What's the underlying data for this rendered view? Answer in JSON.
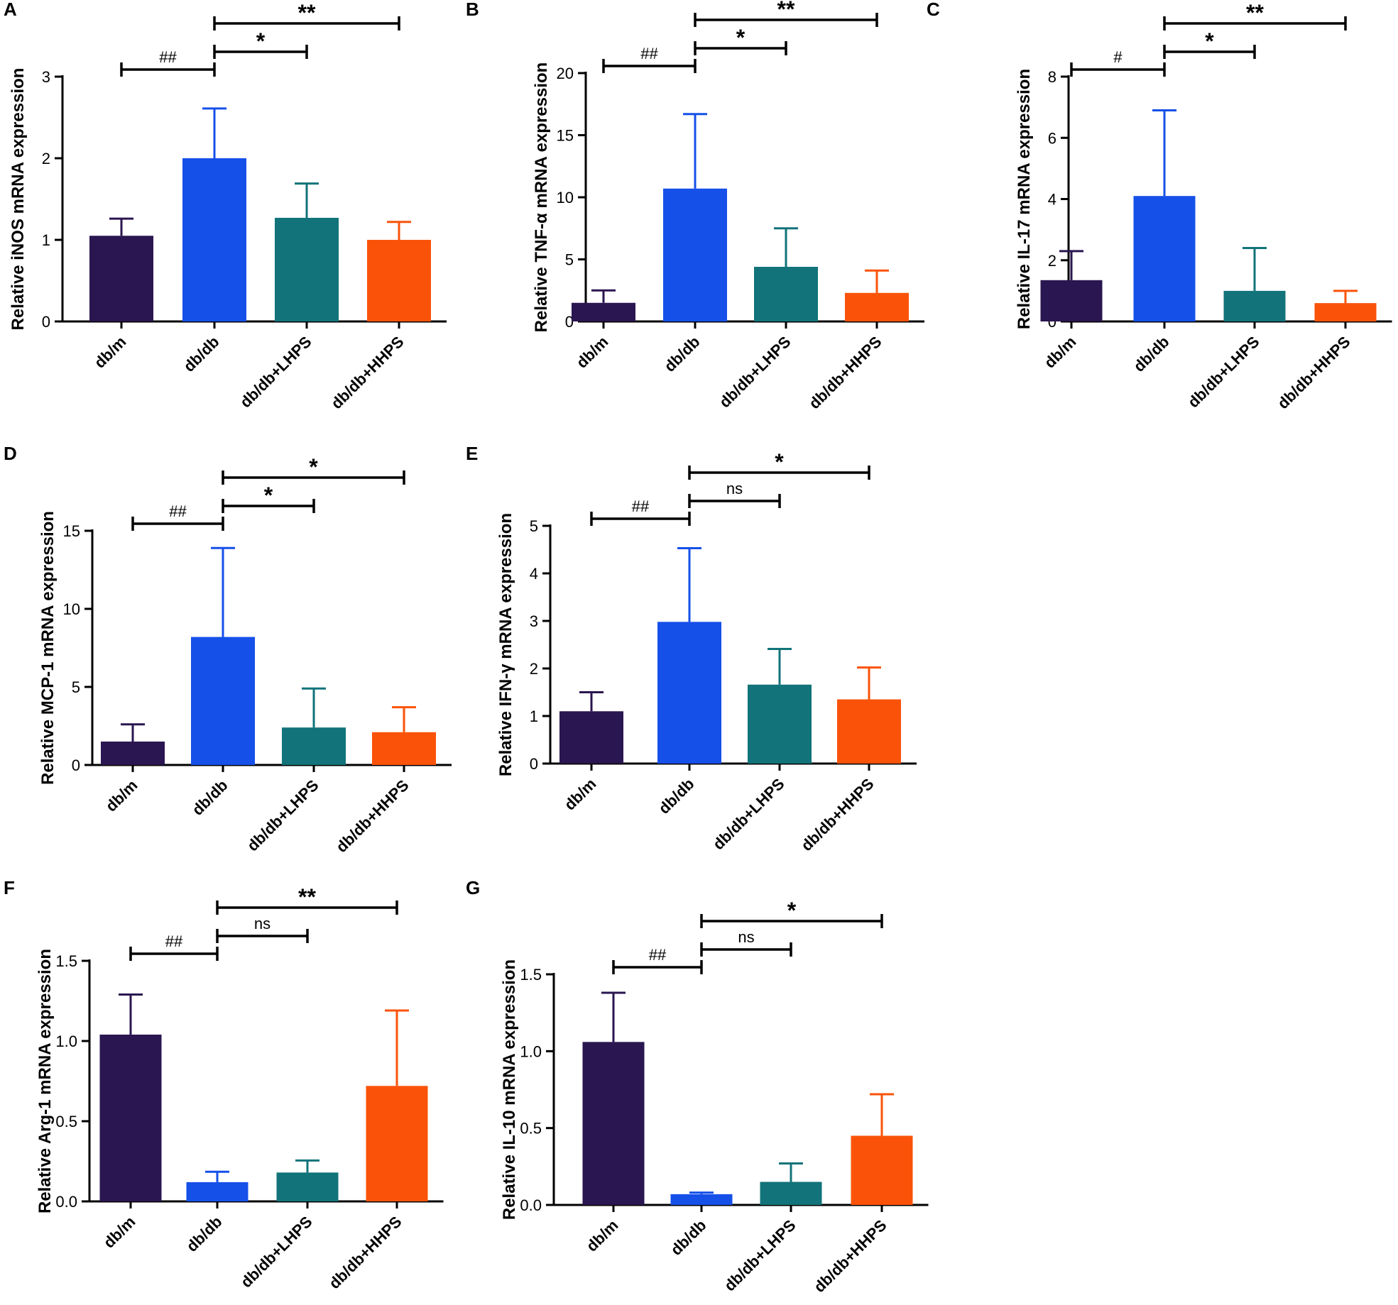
{
  "chart_data": [
    {
      "panel": "A",
      "type": "bar",
      "ylabel": "Relative iNOS mRNA expression",
      "categories": [
        "db/m",
        "db/db",
        "db/db+LHPS",
        "db/db+HHPS"
      ],
      "values": [
        1.05,
        2.0,
        1.27,
        1.0
      ],
      "errors": [
        0.21,
        0.61,
        0.42,
        0.22
      ],
      "colors": [
        "#2a1650",
        "#1550e8",
        "#12737a",
        "#fa5309"
      ],
      "ylim": [
        0,
        3
      ],
      "yticks": [
        "0",
        "1",
        "2",
        "3"
      ],
      "comparisons": [
        {
          "from": 0,
          "to": 1,
          "label": "##"
        },
        {
          "from": 1,
          "to": 2,
          "label": "*"
        },
        {
          "from": 1,
          "to": 3,
          "label": "**"
        }
      ]
    },
    {
      "panel": "B",
      "type": "bar",
      "ylabel": "Relative TNF-α mRNA expression",
      "categories": [
        "db/m",
        "db/db",
        "db/db+LHPS",
        "db/db+HHPS"
      ],
      "values": [
        1.5,
        10.7,
        4.4,
        2.3
      ],
      "errors": [
        1.0,
        6.0,
        3.1,
        1.8
      ],
      "colors": [
        "#2a1650",
        "#1550e8",
        "#12737a",
        "#fa5309"
      ],
      "ylim": [
        0,
        20
      ],
      "yticks": [
        "0",
        "5",
        "10",
        "15",
        "20"
      ],
      "comparisons": [
        {
          "from": 0,
          "to": 1,
          "label": "##"
        },
        {
          "from": 1,
          "to": 2,
          "label": "*"
        },
        {
          "from": 1,
          "to": 3,
          "label": "**"
        }
      ]
    },
    {
      "panel": "C",
      "type": "bar",
      "ylabel": "Relative IL-17 mRNA expression",
      "categories": [
        "db/m",
        "db/db",
        "db/db+LHPS",
        "db/db+HHPS"
      ],
      "values": [
        1.35,
        4.1,
        1.0,
        0.6
      ],
      "errors": [
        0.95,
        2.8,
        1.4,
        0.4
      ],
      "colors": [
        "#2a1650",
        "#1550e8",
        "#12737a",
        "#fa5309"
      ],
      "ylim": [
        0,
        8
      ],
      "yticks": [
        "0",
        "2",
        "4",
        "6",
        "8"
      ],
      "comparisons": [
        {
          "from": 0,
          "to": 1,
          "label": "#"
        },
        {
          "from": 1,
          "to": 2,
          "label": "*"
        },
        {
          "from": 1,
          "to": 3,
          "label": "**"
        }
      ]
    },
    {
      "panel": "D",
      "type": "bar",
      "ylabel": "Relative MCP-1 mRNA expression",
      "categories": [
        "db/m",
        "db/db",
        "db/db+LHPS",
        "db/db+HHPS"
      ],
      "values": [
        1.5,
        8.2,
        2.4,
        2.1
      ],
      "errors": [
        1.1,
        5.7,
        2.5,
        1.6
      ],
      "colors": [
        "#2a1650",
        "#1550e8",
        "#12737a",
        "#fa5309"
      ],
      "ylim": [
        0,
        15
      ],
      "yticks": [
        "0",
        "5",
        "10",
        "15"
      ],
      "comparisons": [
        {
          "from": 0,
          "to": 1,
          "label": "##"
        },
        {
          "from": 1,
          "to": 2,
          "label": "*"
        },
        {
          "from": 1,
          "to": 3,
          "label": "*"
        }
      ]
    },
    {
      "panel": "E",
      "type": "bar",
      "ylabel": "Relative IFN-γ mRNA expression",
      "categories": [
        "db/m",
        "db/db",
        "db/db+LHPS",
        "db/db+HHPS"
      ],
      "values": [
        1.1,
        2.98,
        1.66,
        1.35
      ],
      "errors": [
        0.4,
        1.55,
        0.75,
        0.67
      ],
      "colors": [
        "#2a1650",
        "#1550e8",
        "#12737a",
        "#fa5309"
      ],
      "ylim": [
        0,
        5
      ],
      "yticks": [
        "0",
        "1",
        "2",
        "3",
        "4",
        "5"
      ],
      "comparisons": [
        {
          "from": 0,
          "to": 1,
          "label": "##"
        },
        {
          "from": 1,
          "to": 2,
          "label": "ns"
        },
        {
          "from": 1,
          "to": 3,
          "label": "*"
        }
      ]
    },
    {
      "panel": "F",
      "type": "bar",
      "ylabel": "Relative Arg-1 mRNA expression",
      "categories": [
        "db/m",
        "db/db",
        "db/db+LHPS",
        "db/db+HHPS"
      ],
      "values": [
        1.04,
        0.12,
        0.18,
        0.72
      ],
      "errors": [
        0.25,
        0.065,
        0.075,
        0.47
      ],
      "colors": [
        "#2a1650",
        "#1550e8",
        "#12737a",
        "#fa5309"
      ],
      "ylim": [
        0,
        1.5
      ],
      "yticks": [
        "0.0",
        "0.5",
        "1.0",
        "1.5"
      ],
      "comparisons": [
        {
          "from": 0,
          "to": 1,
          "label": "##"
        },
        {
          "from": 1,
          "to": 2,
          "label": "ns"
        },
        {
          "from": 1,
          "to": 3,
          "label": "**"
        }
      ]
    },
    {
      "panel": "G",
      "type": "bar",
      "ylabel": "Relative IL-10 mRNA expression",
      "categories": [
        "db/m",
        "db/db",
        "db/db+LHPS",
        "db/db+HHPS"
      ],
      "values": [
        1.06,
        0.07,
        0.15,
        0.45
      ],
      "errors": [
        0.32,
        0.01,
        0.12,
        0.27
      ],
      "colors": [
        "#2a1650",
        "#1550e8",
        "#12737a",
        "#fa5309"
      ],
      "ylim": [
        0,
        1.5
      ],
      "yticks": [
        "0.0",
        "0.5",
        "1.0",
        "1.5"
      ],
      "comparisons": [
        {
          "from": 0,
          "to": 1,
          "label": "##"
        },
        {
          "from": 1,
          "to": 2,
          "label": "ns"
        },
        {
          "from": 1,
          "to": 3,
          "label": "*"
        }
      ]
    }
  ]
}
